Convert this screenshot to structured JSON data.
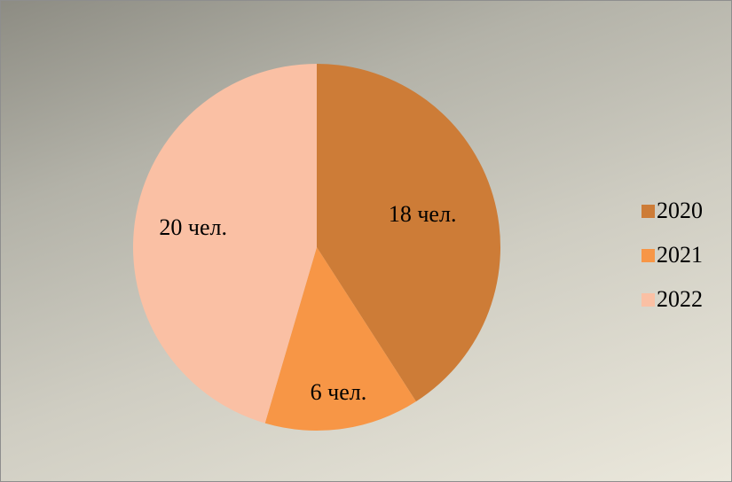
{
  "chart_data": {
    "type": "pie",
    "title": "",
    "categories": [
      "2020",
      "2021",
      "2022"
    ],
    "values": [
      18,
      6,
      20
    ],
    "data_labels": [
      "18 чел.",
      "6 чел.",
      "20 чел."
    ],
    "colors": [
      "#cd7c37",
      "#f79646",
      "#fac0a4"
    ],
    "legend_position": "right",
    "start_angle": "12 o'clock",
    "direction": "clockwise"
  }
}
